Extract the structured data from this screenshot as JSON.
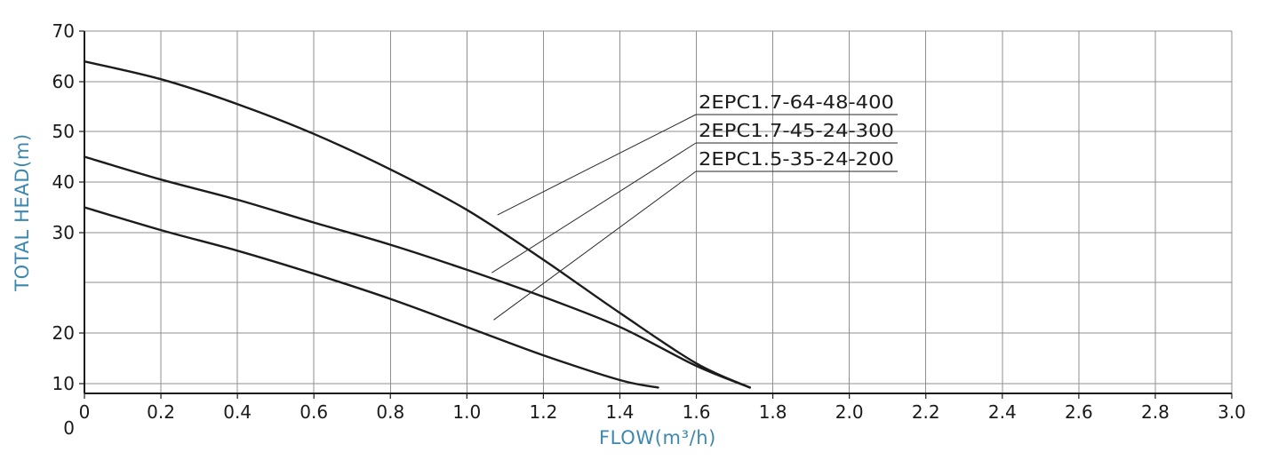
{
  "chart_data": {
    "type": "line",
    "xlabel": "FLOW(m³/h)",
    "ylabel": "TOTAL HEAD(m)",
    "xlim": [
      0,
      3.0
    ],
    "ylim": [
      0,
      70
    ],
    "grid": true,
    "legend_position": "annotated-on-chart",
    "x_ticks": [
      "0",
      "0.2",
      "0.4",
      "0.6",
      "0.8",
      "1.0",
      "1.2",
      "1.4",
      "1.6",
      "1.8",
      "2.0",
      "2.2",
      "2.4",
      "2.6",
      "2.8",
      "3.0"
    ],
    "x_tick_values": [
      0,
      0.2,
      0.4,
      0.6,
      0.8,
      1.0,
      1.2,
      1.4,
      1.6,
      1.8,
      2.0,
      2.2,
      2.4,
      2.6,
      2.8,
      3.0
    ],
    "y_ticks": [
      {
        "label": "70",
        "value": 70
      },
      {
        "label": "60",
        "value": 60
      },
      {
        "label": "50",
        "value": 50
      },
      {
        "label": "40",
        "value": 40
      },
      {
        "label": "30",
        "value": 30
      },
      {
        "label": "20",
        "value": 20
      },
      {
        "label": "10",
        "value": 10
      },
      {
        "label": "0",
        "value": 0
      }
    ],
    "series": [
      {
        "name": "2EPC1.7-64-48-400",
        "flow": [
          0,
          0.2,
          0.4,
          0.6,
          0.8,
          1.0,
          1.2,
          1.4,
          1.6,
          1.74
        ],
        "head": [
          64,
          60.5,
          55.5,
          49.5,
          42.5,
          34.5,
          27.3,
          22.0,
          14.0,
          6.0
        ],
        "label_anchor": {
          "flow": 1.08,
          "head": 33.5
        }
      },
      {
        "name": "2EPC1.7-45-24-300",
        "flow": [
          0,
          0.2,
          0.4,
          0.6,
          0.8,
          1.0,
          1.2,
          1.4,
          1.6,
          1.74
        ],
        "head": [
          45,
          40.5,
          36.5,
          32.0,
          28.8,
          26.3,
          23.6,
          20.6,
          13.5,
          6.0
        ],
        "label_anchor": {
          "flow": 1.065,
          "head": 26.0
        }
      },
      {
        "name": "2EPC1.5-35-24-200",
        "flow": [
          0,
          0.2,
          0.4,
          0.6,
          0.8,
          1.0,
          1.2,
          1.4,
          1.5
        ],
        "head": [
          35,
          30.5,
          28.2,
          25.9,
          23.4,
          20.6,
          15.6,
          10.7,
          6.0
        ],
        "label_anchor": {
          "flow": 1.07,
          "head": 21.3
        }
      }
    ]
  },
  "colors": {
    "curve": "#1c1c1c",
    "grid": "#8f8f8f",
    "axis": "#1c1c1c",
    "axis_title": "#3d88ad",
    "tick_label": "#1a1a1a",
    "annotation_line": "#2a2a2a",
    "annotation_text": "#1c1c1c"
  }
}
